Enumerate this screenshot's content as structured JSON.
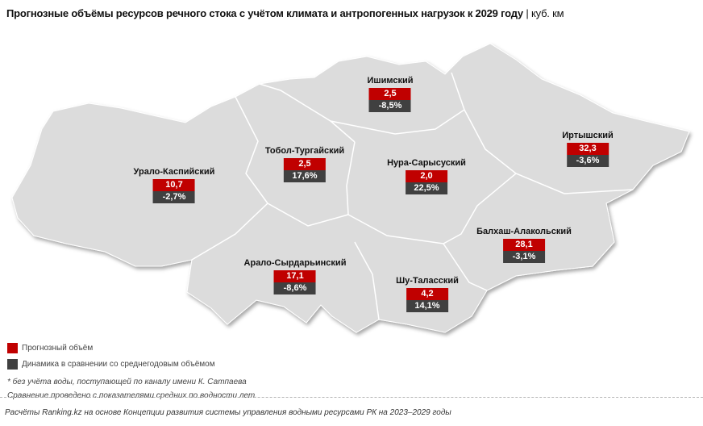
{
  "title": {
    "main": "Прогнозные объёмы ресурсов речного стока с учётом климата и антропогенных нагрузок к 2029 году",
    "separator": "|",
    "unit": "куб. км"
  },
  "colors": {
    "forecast": "#c00000",
    "dynamics": "#404040",
    "land": "#dcdcdc",
    "border": "#ffffff"
  },
  "regions": [
    {
      "name": "Ишимский",
      "forecast": "2,5",
      "dynamics": "-8,5%"
    },
    {
      "name": "Иртышский",
      "forecast": "32,3",
      "dynamics": "-3,6%"
    },
    {
      "name": "Тобол-Тургайский",
      "forecast": "2,5",
      "dynamics": "17,6%"
    },
    {
      "name": "Нура-Сарысуский",
      "forecast": "2,0",
      "dynamics": "22,5%"
    },
    {
      "name": "Урало-Каспийский",
      "forecast": "10,7",
      "dynamics": "-2,7%"
    },
    {
      "name": "Балхаш-Алакольский",
      "forecast": "28,1",
      "dynamics": "-3,1%"
    },
    {
      "name": "Арало-Сырдарьинский",
      "forecast": "17,1",
      "dynamics": "-8,6%"
    },
    {
      "name": "Шу-Таласский",
      "forecast": "4,2",
      "dynamics": "14,1%"
    }
  ],
  "legend": {
    "forecast": "Прогнозный объём",
    "dynamics": "Динамика в сравнении со среднегодовым объёмом"
  },
  "notes": [
    "* без учёта воды, поступающей по каналу имени К. Сатпаева",
    "Сравнение проведено с показателями средних по водности лет."
  ],
  "source": "Расчёты Ranking.kz на основе Концепции развития системы управления водными ресурсами РК на 2023–2029 годы"
}
